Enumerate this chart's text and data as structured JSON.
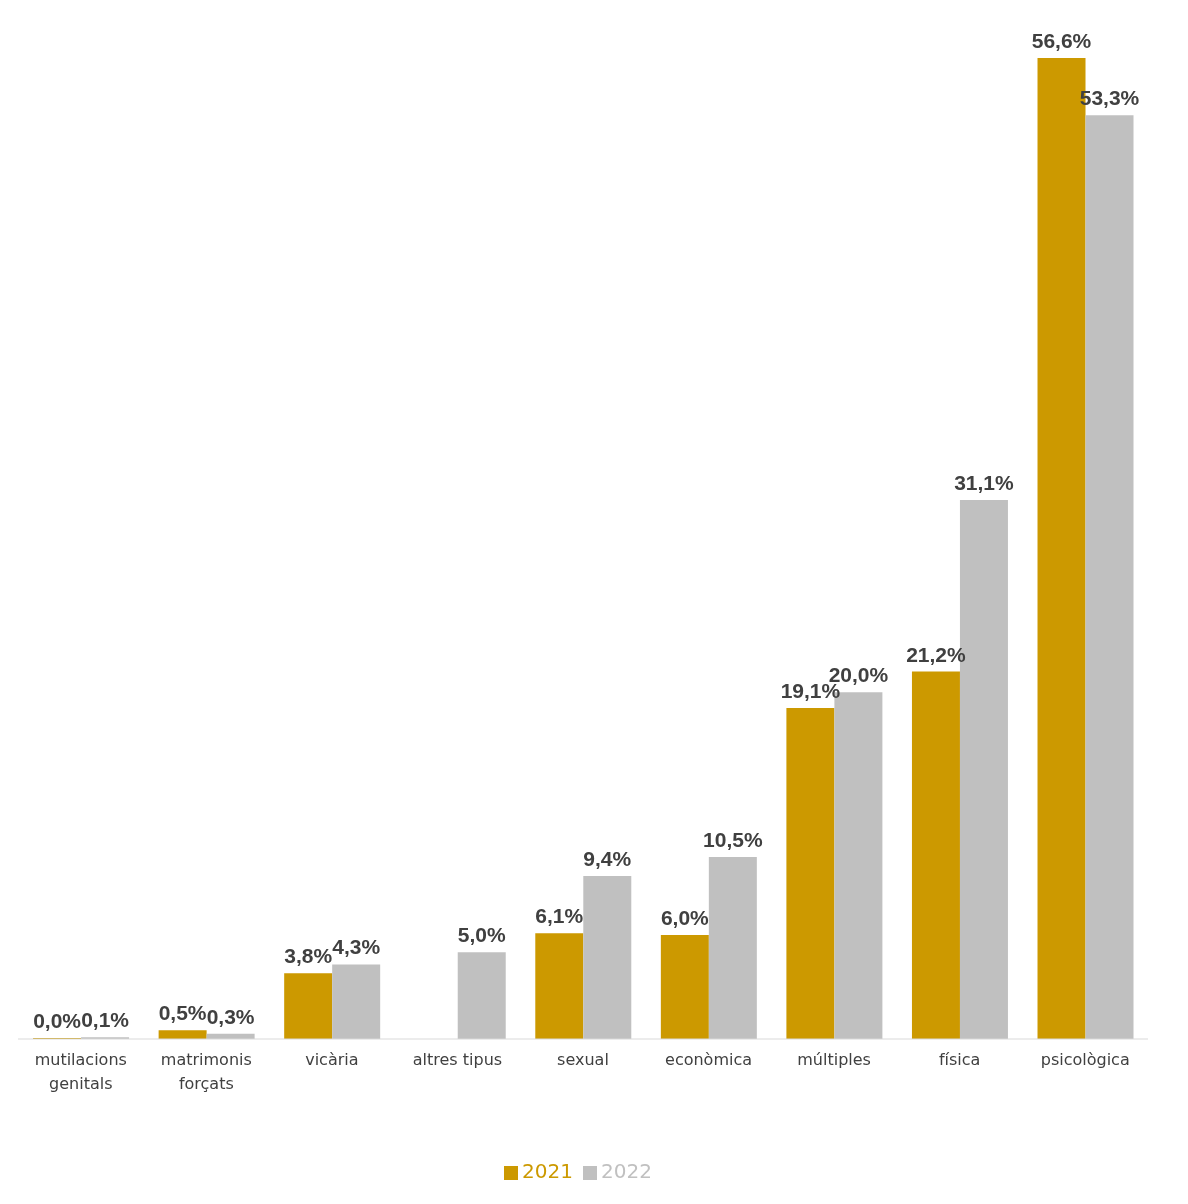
{
  "chart_data": {
    "type": "bar",
    "categories": [
      "mutilacions genitals",
      "matrimonis forçats",
      "vicària",
      "altres tipus",
      "sexual",
      "econòmica",
      "múltiples",
      "física",
      "psicològica"
    ],
    "series": [
      {
        "name": "2021",
        "color": "#cc9900",
        "values": [
          0.0,
          0.5,
          3.8,
          null,
          6.1,
          6.0,
          19.1,
          21.2,
          56.6
        ],
        "value_labels": [
          "0,0%",
          "0,5%",
          "3,8%",
          null,
          "6,1%",
          "6,0%",
          "19,1%",
          "21,2%",
          "56,6%"
        ]
      },
      {
        "name": "2022",
        "color": "#c0c0c0",
        "values": [
          0.1,
          0.3,
          4.3,
          5.0,
          9.4,
          10.5,
          20.0,
          31.1,
          53.3
        ],
        "value_labels": [
          "0,1%",
          "0,3%",
          "4,3%",
          "5,0%",
          "9,4%",
          "10,5%",
          "20,0%",
          "31,1%",
          "53,3%"
        ]
      }
    ],
    "legend": "bottom",
    "tick_labels": "x",
    "grid": false
  }
}
